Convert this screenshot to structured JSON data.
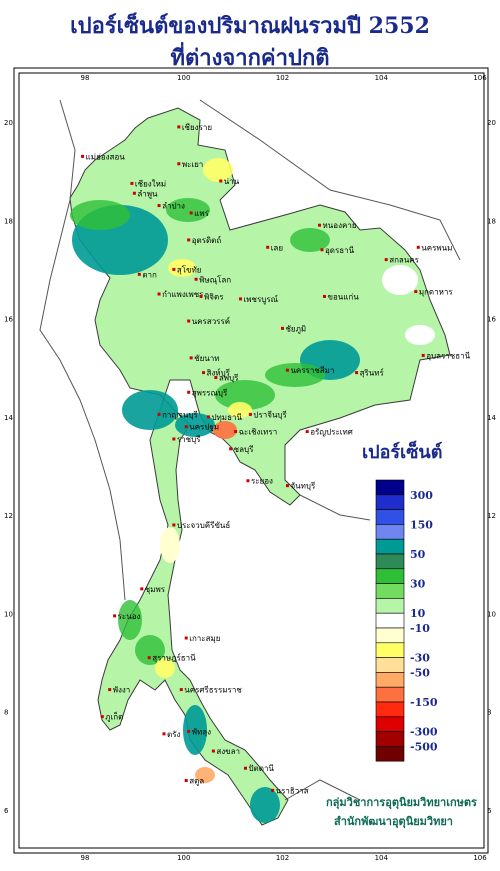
{
  "title": {
    "line1": "เปอร์เซ็นต์ของปริมาณฝนรวมปี  2552",
    "line2": "ที่ต่างจากค่าปกติ"
  },
  "axes": {
    "lon_ticks": [
      "98",
      "100",
      "102",
      "104",
      "106"
    ],
    "lat_ticks": [
      "6",
      "8",
      "10",
      "12",
      "14",
      "16",
      "18",
      "20"
    ]
  },
  "legend": {
    "title": "เปอร์เซ็นต์",
    "labels": [
      "300",
      "150",
      "50",
      "30",
      "10",
      "-10",
      "-30",
      "-50",
      "-150",
      "-300",
      "-500"
    ],
    "colors": [
      "#00008b",
      "#1e2dcc",
      "#3050e6",
      "#6f86f2",
      "#009a96",
      "#2e8b57",
      "#2fbf37",
      "#73db5f",
      "#b6f5a8",
      "#ffffff",
      "#ffffd0",
      "#ffff66",
      "#ffdf9a",
      "#ffaa66",
      "#ff7040",
      "#ff2a10",
      "#dd0000",
      "#a00000",
      "#700000"
    ]
  },
  "provinces": [
    {
      "name": "เชียงราย",
      "lon": 99.9,
      "lat": 19.9
    },
    {
      "name": "แม่ฮ่องสอน",
      "lon": 97.95,
      "lat": 19.3
    },
    {
      "name": "เชียงใหม่",
      "lon": 98.95,
      "lat": 18.75
    },
    {
      "name": "ลำพูน",
      "lon": 99.0,
      "lat": 18.55
    },
    {
      "name": "ลำปาง",
      "lon": 99.5,
      "lat": 18.3
    },
    {
      "name": "พะเยา",
      "lon": 99.9,
      "lat": 19.15
    },
    {
      "name": "น่าน",
      "lon": 100.75,
      "lat": 18.8
    },
    {
      "name": "แพร่",
      "lon": 100.15,
      "lat": 18.15
    },
    {
      "name": "อุตรดิตถ์",
      "lon": 100.1,
      "lat": 17.6
    },
    {
      "name": "สุโขทัย",
      "lon": 99.8,
      "lat": 17.0
    },
    {
      "name": "ตาก",
      "lon": 99.1,
      "lat": 16.9
    },
    {
      "name": "พิษณุโลก",
      "lon": 100.25,
      "lat": 16.8
    },
    {
      "name": "กำแพงเพชร",
      "lon": 99.5,
      "lat": 16.5
    },
    {
      "name": "พิจิตร",
      "lon": 100.35,
      "lat": 16.45
    },
    {
      "name": "เพชรบูรณ์",
      "lon": 101.15,
      "lat": 16.4
    },
    {
      "name": "นครสวรรค์",
      "lon": 100.1,
      "lat": 15.95
    },
    {
      "name": "ชัยนาท",
      "lon": 100.15,
      "lat": 15.2
    },
    {
      "name": "ลพบุรี",
      "lon": 100.65,
      "lat": 14.8
    },
    {
      "name": "สิงห์บุรี",
      "lon": 100.4,
      "lat": 14.9
    },
    {
      "name": "สุพรรณบุรี",
      "lon": 100.1,
      "lat": 14.5
    },
    {
      "name": "กาญจนบุรี",
      "lon": 99.5,
      "lat": 14.05
    },
    {
      "name": "ปทุมธานี",
      "lon": 100.5,
      "lat": 14.0
    },
    {
      "name": "นครปฐม",
      "lon": 100.05,
      "lat": 13.8
    },
    {
      "name": "ราชบุรี",
      "lon": 99.8,
      "lat": 13.55
    },
    {
      "name": "ฉะเชิงเทรา",
      "lon": 101.05,
      "lat": 13.7
    },
    {
      "name": "ปราจีนบุรี",
      "lon": 101.35,
      "lat": 14.05
    },
    {
      "name": "อรัญประเทศ",
      "lon": 102.5,
      "lat": 13.7
    },
    {
      "name": "ชลบุรี",
      "lon": 100.95,
      "lat": 13.35
    },
    {
      "name": "ระยอง",
      "lon": 101.3,
      "lat": 12.7
    },
    {
      "name": "จันทบุรี",
      "lon": 102.1,
      "lat": 12.6
    },
    {
      "name": "ประจวบคีรีขันธ์",
      "lon": 99.8,
      "lat": 11.8
    },
    {
      "name": "ชุมพร",
      "lon": 99.15,
      "lat": 10.5
    },
    {
      "name": "ระนอง",
      "lon": 98.6,
      "lat": 9.95
    },
    {
      "name": "เกาะสมุย",
      "lon": 100.05,
      "lat": 9.5
    },
    {
      "name": "สุราษฎร์ธานี",
      "lon": 99.3,
      "lat": 9.1
    },
    {
      "name": "พังงา",
      "lon": 98.5,
      "lat": 8.45
    },
    {
      "name": "ภูเก็ต",
      "lon": 98.35,
      "lat": 7.9
    },
    {
      "name": "นครศรีธรรมราช",
      "lon": 99.95,
      "lat": 8.45
    },
    {
      "name": "ตรัง",
      "lon": 99.6,
      "lat": 7.55
    },
    {
      "name": "พัทลุง",
      "lon": 100.1,
      "lat": 7.6
    },
    {
      "name": "สงขลา",
      "lon": 100.6,
      "lat": 7.2
    },
    {
      "name": "ปัตตานี",
      "lon": 101.25,
      "lat": 6.85
    },
    {
      "name": "สตูล",
      "lon": 100.05,
      "lat": 6.6
    },
    {
      "name": "นราธิวาส",
      "lon": 101.8,
      "lat": 6.4
    },
    {
      "name": "หนองคาย",
      "lon": 102.75,
      "lat": 17.9
    },
    {
      "name": "อุดรธานี",
      "lon": 102.8,
      "lat": 17.4
    },
    {
      "name": "เลย",
      "lon": 101.7,
      "lat": 17.45
    },
    {
      "name": "สกลนคร",
      "lon": 104.1,
      "lat": 17.2
    },
    {
      "name": "นครพนม",
      "lon": 104.75,
      "lat": 17.45
    },
    {
      "name": "มุกดาหาร",
      "lon": 104.7,
      "lat": 16.55
    },
    {
      "name": "ขอนแก่น",
      "lon": 102.85,
      "lat": 16.45
    },
    {
      "name": "ชัยภูมิ",
      "lon": 102.0,
      "lat": 15.8
    },
    {
      "name": "อุบลราชธานี",
      "lon": 104.85,
      "lat": 15.25
    },
    {
      "name": "นครราชสีมา",
      "lon": 102.1,
      "lat": 14.95
    },
    {
      "name": "สุรินทร์",
      "lon": 103.5,
      "lat": 14.9
    }
  ],
  "credits": {
    "line1": "กลุ่มวิชาการอุตุนิยมวิทยาเกษตร",
    "line2": "สำนักพัฒนาอุตุนิยมวิทยา"
  }
}
